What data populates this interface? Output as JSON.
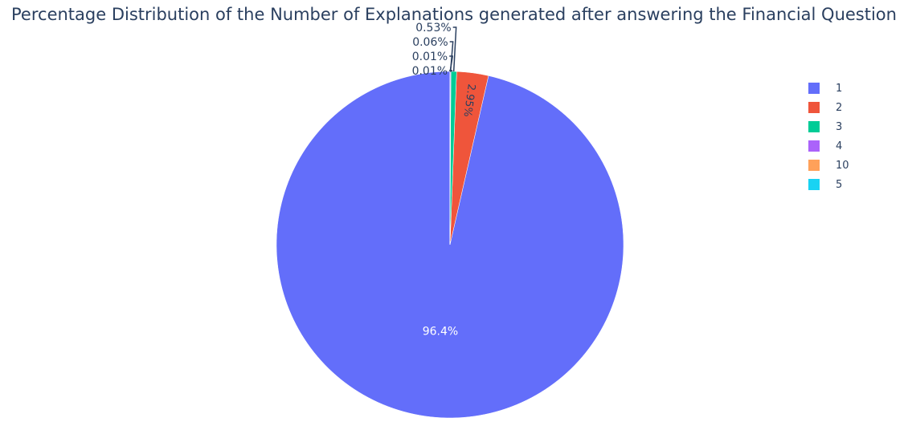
{
  "chart_data": {
    "type": "pie",
    "title": "Percentage Distribution of the Number of Explanations generated after answering the Financial Question",
    "labels": [
      "1",
      "2",
      "3",
      "4",
      "10",
      "5"
    ],
    "values": [
      96.4,
      2.95,
      0.53,
      0.06,
      0.01,
      0.01
    ],
    "text_labels": [
      "96.4%",
      "2.95%",
      "0.53%",
      "0.06%",
      "0.01%",
      "0.01%"
    ],
    "colors": [
      "#636efa",
      "#EF553B",
      "#00cc96",
      "#ab63fa",
      "#FFA15A",
      "#19d3f3"
    ],
    "legend_position": "right",
    "direction": "counterclockwise",
    "start": "top"
  }
}
